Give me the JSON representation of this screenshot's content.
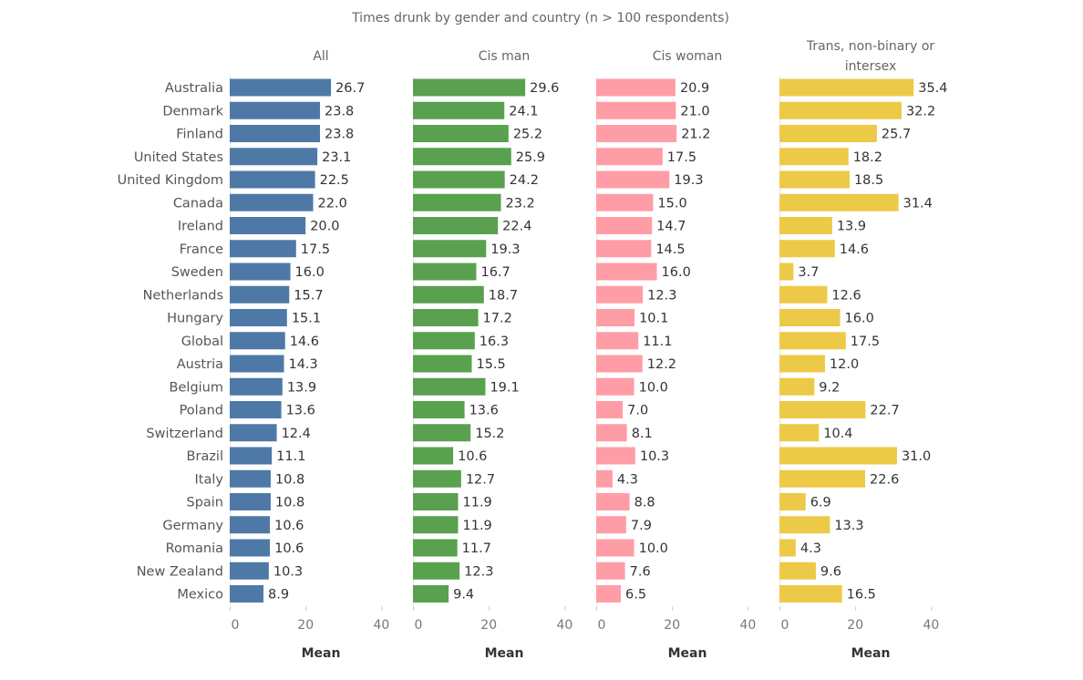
{
  "chart_data": {
    "type": "bar",
    "orientation": "horizontal",
    "title": "Times drunk by gender and country (n > 100 respondents)",
    "categories": [
      "Australia",
      "Denmark",
      "Finland",
      "United States",
      "United Kingdom",
      "Canada",
      "Ireland",
      "France",
      "Sweden",
      "Netherlands",
      "Hungary",
      "Global",
      "Austria",
      "Belgium",
      "Poland",
      "Switzerland",
      "Brazil",
      "Italy",
      "Spain",
      "Germany",
      "Romania",
      "New Zealand",
      "Mexico"
    ],
    "xlabel": "Mean",
    "xlim": [
      0,
      40
    ],
    "xticks": [
      0,
      20,
      40
    ],
    "grid": false,
    "panels": [
      {
        "name": "All",
        "color": "#4e79a7",
        "values": [
          26.7,
          23.8,
          23.8,
          23.1,
          22.5,
          22.0,
          20.0,
          17.5,
          16.0,
          15.7,
          15.1,
          14.6,
          14.3,
          13.9,
          13.6,
          12.4,
          11.1,
          10.8,
          10.8,
          10.6,
          10.6,
          10.3,
          8.9
        ]
      },
      {
        "name": "Cis man",
        "color": "#59a14f",
        "values": [
          29.6,
          24.1,
          25.2,
          25.9,
          24.2,
          23.2,
          22.4,
          19.3,
          16.7,
          18.7,
          17.2,
          16.3,
          15.5,
          19.1,
          13.6,
          15.2,
          10.6,
          12.7,
          11.9,
          11.9,
          11.7,
          12.3,
          9.4
        ]
      },
      {
        "name": "Cis woman",
        "color": "#ff9da7",
        "values": [
          20.9,
          21.0,
          21.2,
          17.5,
          19.3,
          15.0,
          14.7,
          14.5,
          16.0,
          12.3,
          10.1,
          11.1,
          12.2,
          10.0,
          7.0,
          8.1,
          10.3,
          4.3,
          8.8,
          7.9,
          10.0,
          7.6,
          6.5
        ]
      },
      {
        "name": "Trans, non-binary or intersex",
        "name_lines": [
          "Trans, non-binary or",
          "intersex"
        ],
        "color": "#edc948",
        "values": [
          35.4,
          32.2,
          25.7,
          18.2,
          18.5,
          31.4,
          13.9,
          14.6,
          3.7,
          12.6,
          16.0,
          17.5,
          12.0,
          9.2,
          22.7,
          10.4,
          31.0,
          22.6,
          6.9,
          13.3,
          4.3,
          9.6,
          16.5
        ]
      }
    ]
  }
}
